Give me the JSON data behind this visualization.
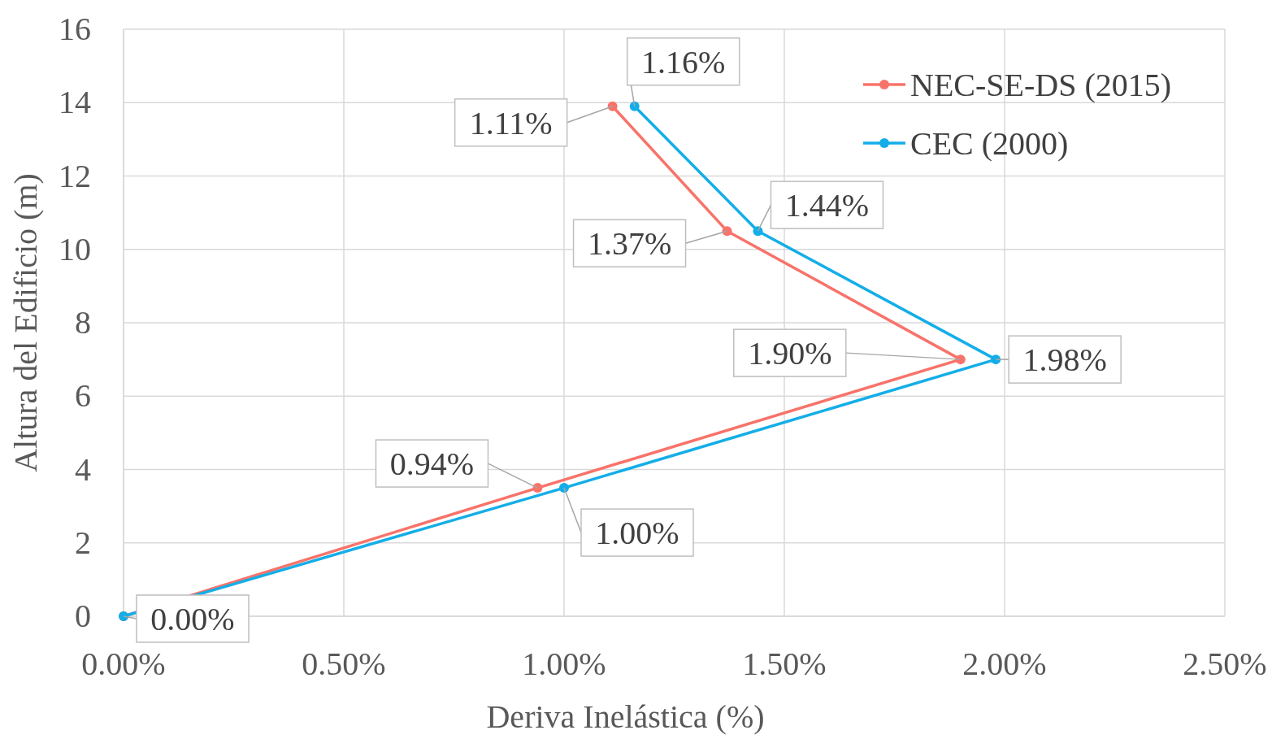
{
  "chart_data": {
    "type": "line",
    "xlabel": "Deriva Inelástica (%)",
    "ylabel": "Altura del Edificio (m)",
    "xlim": [
      0,
      2.5
    ],
    "xticks": [
      {
        "value": 0,
        "label": "0.00%"
      },
      {
        "value": 0.5,
        "label": "0.50%"
      },
      {
        "value": 1,
        "label": "1.00%"
      },
      {
        "value": 1.5,
        "label": "1.50%"
      },
      {
        "value": 2,
        "label": "2.00%"
      },
      {
        "value": 2.5,
        "label": "2.50%"
      }
    ],
    "ylim": [
      0,
      16
    ],
    "yticks": [
      0,
      2,
      4,
      6,
      8,
      10,
      12,
      14,
      16
    ],
    "grid": true,
    "legend": "top right",
    "marker": "circle",
    "line_style": "solid",
    "series": [
      {
        "name": "NEC-SE-DS (2015)",
        "color": "#f8736a",
        "x": [
          0,
          0.94,
          1.9,
          1.37,
          1.11
        ],
        "values": [
          0,
          3.5,
          7,
          10.5,
          13.9
        ]
      },
      {
        "name": "CEC (2000)",
        "color": "#13aee8",
        "x": [
          0,
          1,
          1.98,
          1.44,
          1.16
        ],
        "values": [
          0,
          3.5,
          7,
          10.5,
          13.9
        ]
      }
    ],
    "annotations": [
      {
        "text": "0.94%",
        "x": 0.94,
        "y": 3.5
      },
      {
        "text": "1.90%",
        "x": 1.9,
        "y": 7
      },
      {
        "text": "1.37%",
        "x": 1.37,
        "y": 10.5
      },
      {
        "text": "1.11%",
        "x": 1.11,
        "y": 13.9
      },
      {
        "text": "0.00%",
        "x": 0,
        "y": 0
      },
      {
        "text": "1.00%",
        "x": 1,
        "y": 3.5
      },
      {
        "text": "1.98%",
        "x": 1.98,
        "y": 7
      },
      {
        "text": "1.44%",
        "x": 1.44,
        "y": 10.5
      },
      {
        "text": "1.16%",
        "x": 1.16,
        "y": 13.9
      }
    ]
  }
}
